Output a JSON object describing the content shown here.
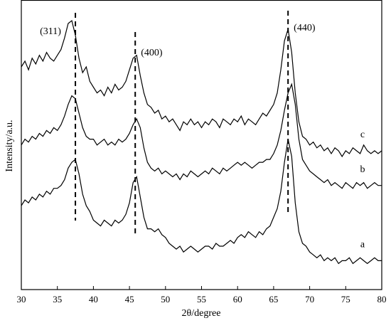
{
  "chart_data": {
    "type": "line",
    "xlabel": "2θ/degree",
    "ylabel": "Intensity/a.u.",
    "xlim": [
      30,
      80
    ],
    "xticks": [
      30,
      35,
      40,
      45,
      50,
      55,
      60,
      65,
      70,
      75,
      80
    ],
    "ylim": [
      0,
      100
    ],
    "x": [
      30,
      30.5,
      31,
      31.5,
      32,
      32.5,
      33,
      33.5,
      34,
      34.5,
      35,
      35.5,
      36,
      36.5,
      37,
      37.5,
      38,
      38.5,
      39,
      39.5,
      40,
      40.5,
      41,
      41.5,
      42,
      42.5,
      43,
      43.5,
      44,
      44.5,
      45,
      45.5,
      46,
      46.5,
      47,
      47.5,
      48,
      48.5,
      49,
      49.5,
      50,
      50.5,
      51,
      51.5,
      52,
      52.5,
      53,
      53.5,
      54,
      54.5,
      55,
      55.5,
      56,
      56.5,
      57,
      57.5,
      58,
      58.5,
      59,
      59.5,
      60,
      60.5,
      61,
      61.5,
      62,
      62.5,
      63,
      63.5,
      64,
      64.5,
      65,
      65.5,
      66,
      66.5,
      67,
      67.5,
      68,
      68.5,
      69,
      69.5,
      70,
      70.5,
      71,
      71.5,
      72,
      72.5,
      73,
      73.5,
      74,
      74.5,
      75,
      75.5,
      76,
      76.5,
      77,
      77.5,
      78,
      78.5,
      79,
      79.5,
      80
    ],
    "series": [
      {
        "name": "a",
        "color": "#000000",
        "values": [
          29,
          31,
          30,
          32,
          31,
          33,
          32,
          34,
          33,
          35,
          35,
          36,
          38,
          42,
          44,
          45,
          40,
          33,
          29,
          27,
          24,
          23,
          22,
          24,
          23,
          22,
          24,
          23,
          24,
          26,
          30,
          37,
          39,
          32,
          25,
          21,
          21,
          20,
          21,
          19,
          18,
          16,
          15,
          14,
          15,
          13,
          14,
          15,
          14,
          13,
          14,
          15,
          15,
          14,
          16,
          15,
          15,
          16,
          17,
          16,
          18,
          19,
          18,
          20,
          19,
          18,
          20,
          19,
          21,
          22,
          25,
          28,
          34,
          44,
          52,
          46,
          30,
          20,
          16,
          15,
          13,
          12,
          11,
          12,
          10,
          11,
          10,
          11,
          9,
          10,
          10,
          11,
          9,
          10,
          11,
          10,
          9,
          10,
          11,
          10,
          10
        ]
      },
      {
        "name": "b",
        "color": "#000000",
        "values": [
          50,
          52,
          51,
          53,
          52,
          54,
          53,
          55,
          54,
          56,
          55,
          57,
          60,
          64,
          67,
          66,
          61,
          56,
          53,
          52,
          52,
          50,
          51,
          52,
          50,
          51,
          50,
          52,
          51,
          52,
          54,
          57,
          59,
          56,
          49,
          44,
          42,
          41,
          42,
          40,
          41,
          40,
          39,
          40,
          38,
          40,
          39,
          41,
          40,
          39,
          40,
          41,
          40,
          42,
          41,
          40,
          42,
          41,
          42,
          43,
          44,
          43,
          44,
          43,
          42,
          43,
          44,
          44,
          45,
          45,
          47,
          50,
          55,
          62,
          68,
          71,
          64,
          52,
          45,
          43,
          41,
          40,
          39,
          38,
          37,
          38,
          36,
          37,
          36,
          35,
          37,
          36,
          35,
          37,
          36,
          37,
          35,
          36,
          37,
          36,
          36
        ]
      },
      {
        "name": "c",
        "color": "#000000",
        "values": [
          77,
          79,
          76,
          80,
          78,
          81,
          79,
          82,
          80,
          79,
          81,
          83,
          87,
          92,
          93,
          88,
          80,
          75,
          77,
          72,
          70,
          68,
          69,
          67,
          70,
          68,
          71,
          69,
          70,
          72,
          76,
          80,
          81,
          74,
          68,
          64,
          63,
          61,
          62,
          59,
          60,
          58,
          59,
          57,
          55,
          58,
          57,
          59,
          57,
          58,
          56,
          58,
          57,
          59,
          58,
          56,
          59,
          58,
          57,
          59,
          58,
          60,
          57,
          59,
          58,
          57,
          59,
          61,
          60,
          62,
          64,
          68,
          76,
          86,
          90,
          82,
          68,
          58,
          53,
          52,
          50,
          51,
          49,
          50,
          48,
          49,
          47,
          49,
          48,
          46,
          48,
          47,
          49,
          48,
          47,
          50,
          48,
          47,
          48,
          47,
          48
        ]
      }
    ],
    "peaks": [
      {
        "label": "(311)",
        "x": 37.5
      },
      {
        "label": "(400)",
        "x": 45.8
      },
      {
        "label": "(440)",
        "x": 67
      }
    ]
  }
}
